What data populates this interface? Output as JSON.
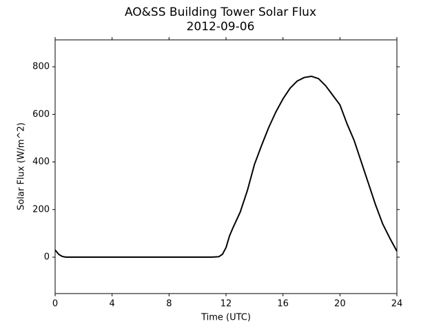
{
  "chart_data": {
    "type": "line",
    "title": "AO&SS Building Tower Solar Flux",
    "subtitle": "2012-09-06",
    "x_label": "Time (UTC)",
    "y_label": "Solar Flux (W/m^2)",
    "x": [
      0,
      0.25,
      0.5,
      0.75,
      1,
      2,
      3,
      4,
      5,
      6,
      7,
      8,
      9,
      10,
      11,
      11.5,
      11.75,
      12,
      12.25,
      12.5,
      13,
      13.5,
      14,
      14.5,
      15,
      15.5,
      16,
      16.5,
      17,
      17.5,
      18,
      18.5,
      19,
      19.5,
      20,
      20.5,
      21,
      21.5,
      22,
      22.5,
      23,
      23.5,
      24
    ],
    "series": [
      {
        "name": "Solar Flux",
        "color": "#000000",
        "values": [
          30,
          12,
          3,
          0,
          0,
          0,
          0,
          0,
          0,
          0,
          0,
          0,
          0,
          0,
          0,
          2,
          12,
          40,
          90,
          125,
          190,
          280,
          390,
          470,
          545,
          610,
          665,
          710,
          740,
          755,
          760,
          750,
          720,
          680,
          640,
          560,
          490,
          400,
          310,
          220,
          140,
          80,
          25
        ]
      }
    ],
    "xlim": [
      0,
      24
    ],
    "xticks": [
      0,
      4,
      8,
      12,
      16,
      20,
      24
    ],
    "ylim": [
      -153,
      913
    ],
    "yticks": [
      0,
      200,
      400,
      600,
      800
    ],
    "grid": false
  }
}
